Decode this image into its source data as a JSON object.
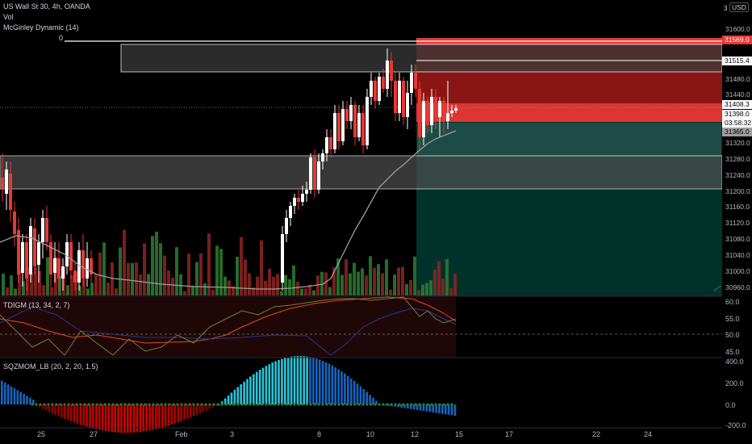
{
  "header": {
    "symbol": "US Wall St 30, 4h, OANDA",
    "vol": "Vol",
    "indicator": "McGinley Dynamic (14)",
    "zero_label": "0",
    "currency": "USD",
    "currency_prefix": "3"
  },
  "price_axis": {
    "labels": [
      "31600.0",
      "31515.4",
      "31480.0",
      "31440.0",
      "31408.3",
      "31398.0",
      "03:58:32",
      "31365.0",
      "31320.0",
      "31280.0",
      "31240.0",
      "31200.0",
      "31160.0",
      "31120.0",
      "31080.0",
      "31040.0",
      "31000.0",
      "30960.0"
    ],
    "tags": {
      "top": "31569.0",
      "level1": "31515.4",
      "current": "31408.3",
      "bid": "31398.0",
      "countdown": "03:58:32",
      "low": "31365.0"
    }
  },
  "tdigm": {
    "title": "TDIGM (13, 34, 2, 7)",
    "axis": [
      "60.0",
      "55.0",
      "50.0",
      "45.0"
    ]
  },
  "sqzmom": {
    "title": "SQZMOM_LB (20, 2, 20, 1.5)",
    "axis": [
      "400.0",
      "200.0",
      "0.0",
      "-200.0"
    ]
  },
  "time_axis": [
    "25",
    "27",
    "Feb",
    "3",
    "8",
    "10",
    "12",
    "15",
    "17",
    "22",
    "24"
  ],
  "colors": {
    "bull": "#ffffff",
    "bear": "#e53935",
    "mcginley": "#9e9e9e",
    "zone_red": "#b71c1c",
    "zone_teal": "#004d40",
    "vol_green": "#2e7d32",
    "vol_red": "#8e2424",
    "sqz_blue": "#1565c0",
    "sqz_cyan": "#26c6da",
    "sqz_red": "#d50000",
    "sqz_dot_green": "#2e7d32"
  }
}
